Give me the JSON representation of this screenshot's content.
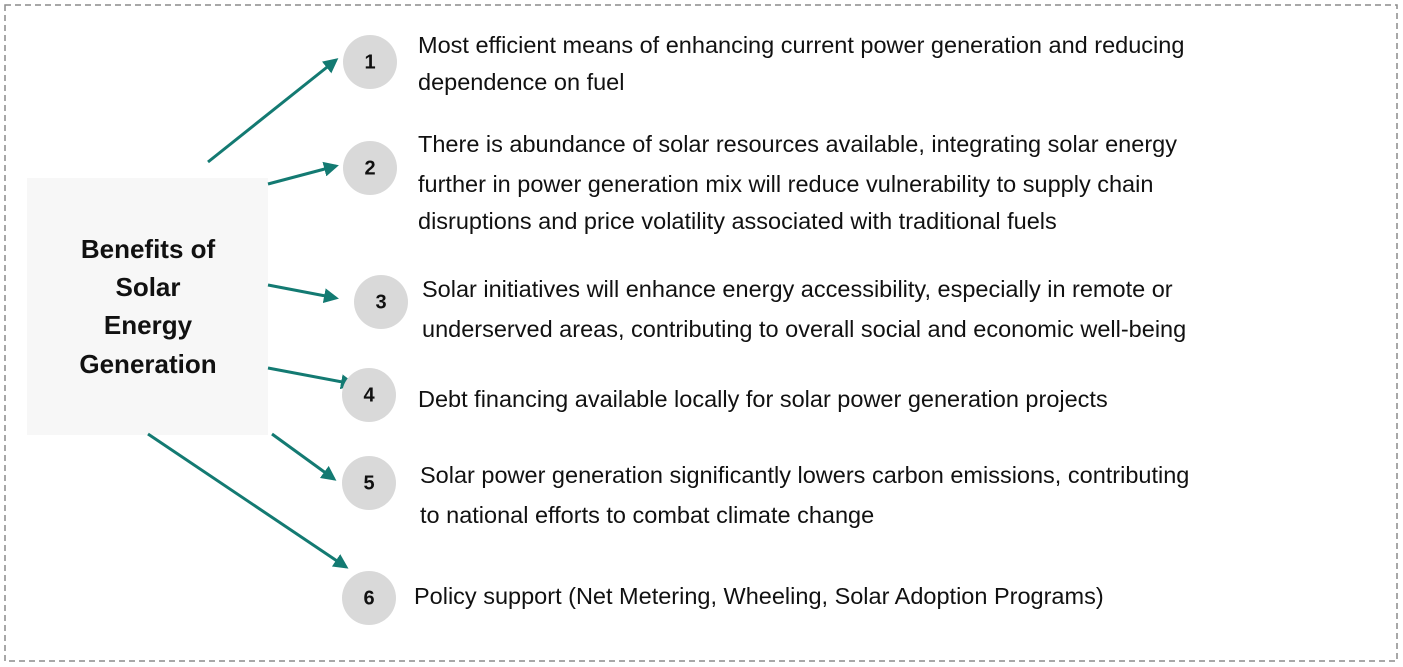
{
  "title": [
    "Benefits of",
    "Solar",
    "Energy",
    "Generation"
  ],
  "items": [
    {
      "number": "1",
      "lines": [
        "Most efficient means of enhancing current power generation and reducing",
        "dependence on fuel"
      ]
    },
    {
      "number": "2",
      "lines": [
        "There is abundance of solar resources available, integrating solar energy",
        "further in power generation mix will reduce vulnerability to supply chain",
        "disruptions and price volatility associated with traditional fuels"
      ]
    },
    {
      "number": "3",
      "lines": [
        "Solar initiatives will enhance energy accessibility, especially in remote or",
        "underserved areas, contributing to overall social and economic well-being"
      ]
    },
    {
      "number": "4",
      "lines": [
        "Debt financing available locally for solar power generation projects"
      ]
    },
    {
      "number": "5",
      "lines": [
        "Solar power generation significantly lowers carbon emissions, contributing",
        "to national efforts to combat climate change"
      ]
    },
    {
      "number": "6",
      "lines": [
        "Policy support (Net Metering, Wheeling, Solar Adoption Programs)"
      ]
    }
  ]
}
